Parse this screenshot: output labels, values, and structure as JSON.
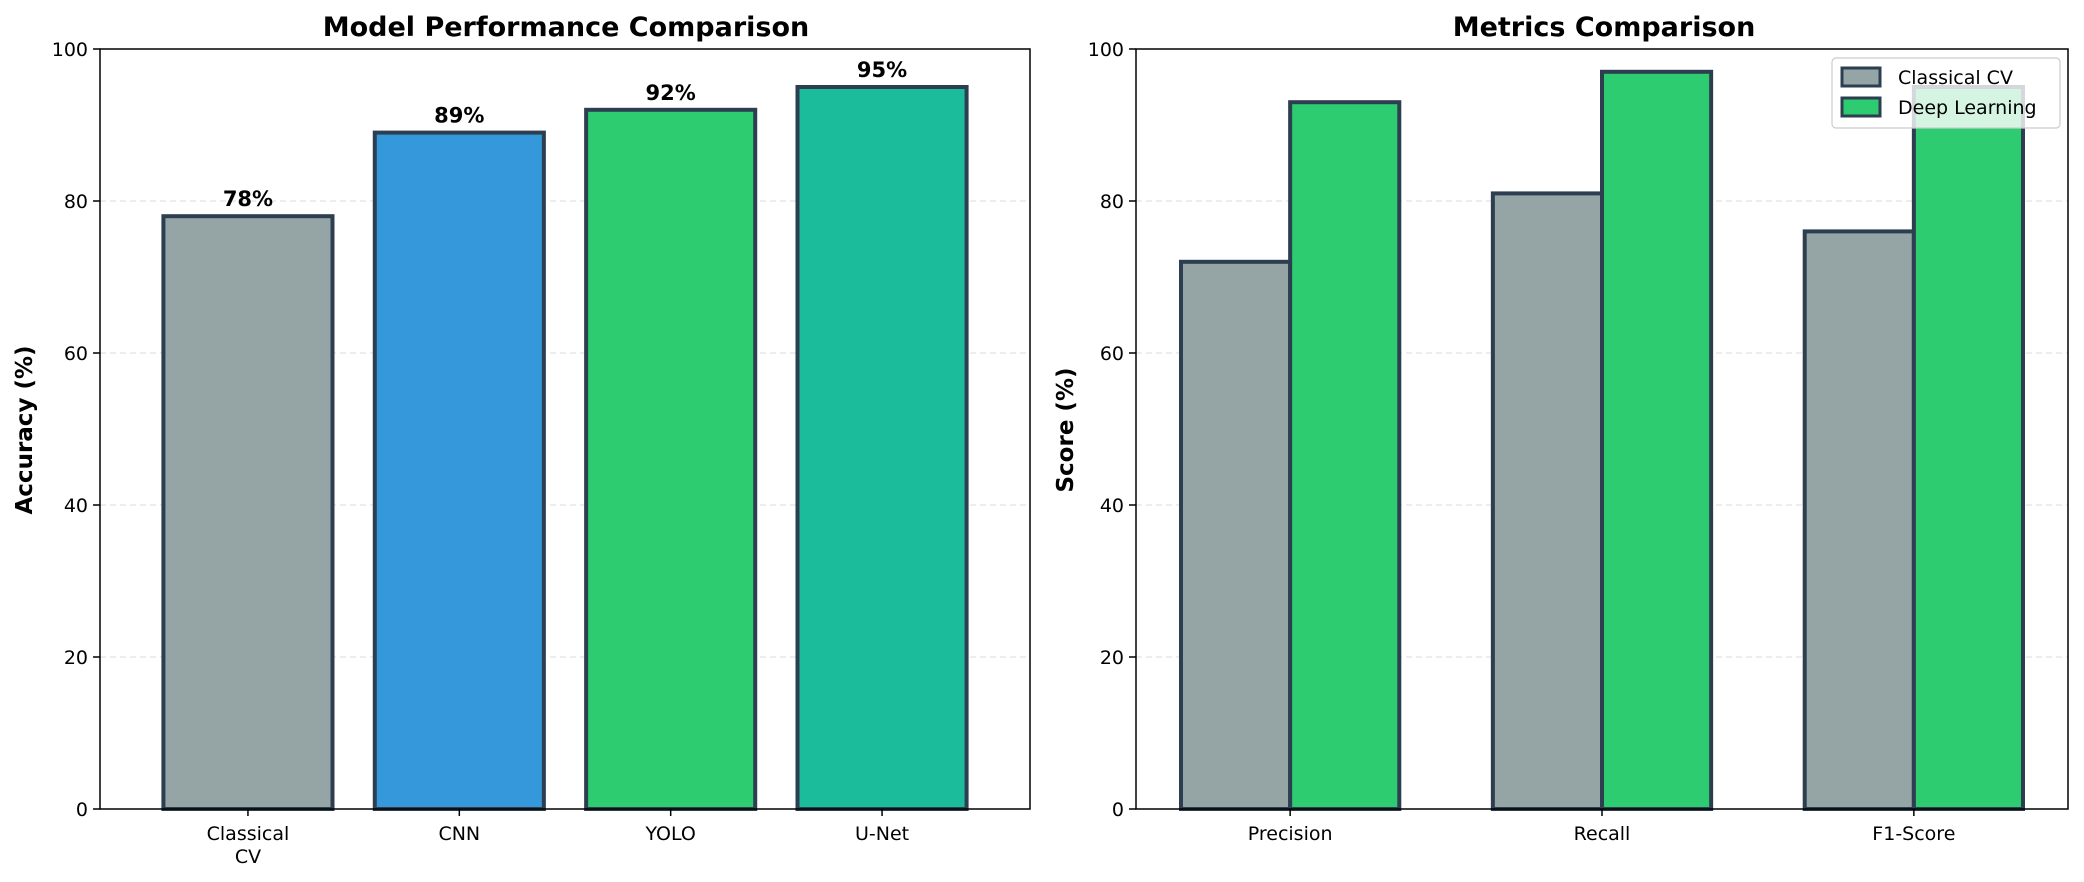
{
  "chart_data": [
    {
      "type": "bar",
      "title": "Model Performance Comparison",
      "xlabel": "",
      "ylabel": "Accuracy (%)",
      "ylim": [
        0,
        100
      ],
      "yticks": [
        "0",
        "20",
        "40",
        "60",
        "80",
        "100"
      ],
      "grid": "y-dashed",
      "categories": [
        [
          "Classical",
          "CV"
        ],
        [
          "CNN"
        ],
        [
          "YOLO"
        ],
        [
          "U-Net"
        ]
      ],
      "values": [
        78,
        89,
        92,
        95
      ],
      "data_labels": [
        "78%",
        "89%",
        "92%",
        "95%"
      ],
      "colors": [
        "#95a5a6",
        "#3498db",
        "#2ecc71",
        "#1abc9c"
      ],
      "edge_color": "#2c3e50"
    },
    {
      "type": "bar",
      "title": "Metrics Comparison",
      "xlabel": "",
      "ylabel": "Score (%)",
      "ylim": [
        0,
        100
      ],
      "yticks": [
        "0",
        "20",
        "40",
        "60",
        "80",
        "100"
      ],
      "grid": "y-dashed",
      "categories": [
        "Precision",
        "Recall",
        "F1-Score"
      ],
      "series": [
        {
          "name": "Classical CV",
          "values": [
            72,
            81,
            76
          ],
          "color": "#95a5a6"
        },
        {
          "name": "Deep Learning",
          "values": [
            93,
            97,
            95
          ],
          "color": "#2ecc71"
        }
      ],
      "legend": "top-right",
      "edge_color": "#2c3e50"
    }
  ]
}
